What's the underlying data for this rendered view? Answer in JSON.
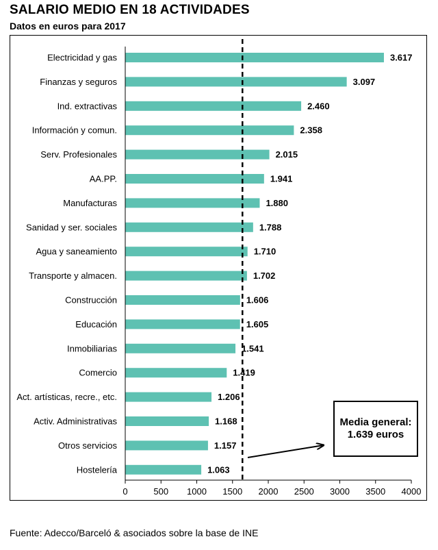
{
  "chart_data": {
    "type": "bar",
    "orientation": "horizontal",
    "title": "SALARIO MEDIO EN 18 ACTIVIDADES",
    "subtitle": "Datos en euros para 2017",
    "categories": [
      "Electricidad y gas",
      "Finanzas y seguros",
      "Ind. extractivas",
      "Información y comun.",
      "Serv. Profesionales",
      "AA.PP.",
      "Manufacturas",
      "Sanidad y ser. sociales",
      "Agua y saneamiento",
      "Transporte y almacen.",
      "Construcción",
      "Educación",
      "Inmobiliarias",
      "Comercio",
      "Act. artísticas, recre., etc.",
      "Activ. Administrativas",
      "Otros servicios",
      "Hostelería"
    ],
    "values": [
      3617,
      3097,
      2460,
      2358,
      2015,
      1941,
      1880,
      1788,
      1710,
      1702,
      1606,
      1605,
      1541,
      1419,
      1206,
      1168,
      1157,
      1063
    ],
    "value_labels": [
      "3.617",
      "3.097",
      "2.460",
      "2.358",
      "2.015",
      "1.941",
      "1.880",
      "1.788",
      "1.710",
      "1.702",
      "1.606",
      "1.605",
      "1.541",
      "1.419",
      "1.206",
      "1.168",
      "1.157",
      "1.063"
    ],
    "xlim": [
      0,
      4000
    ],
    "xticks": [
      0,
      500,
      1000,
      1500,
      2000,
      2500,
      3000,
      3500,
      4000
    ],
    "reference_line": {
      "value": 1639,
      "style": "dashed"
    },
    "annotation": "Media general: 1.639 euros",
    "bar_color": "#5ec1b2",
    "grid": false
  },
  "source": "Fuente: Adecco/Barceló & asociados sobre la base de INE"
}
